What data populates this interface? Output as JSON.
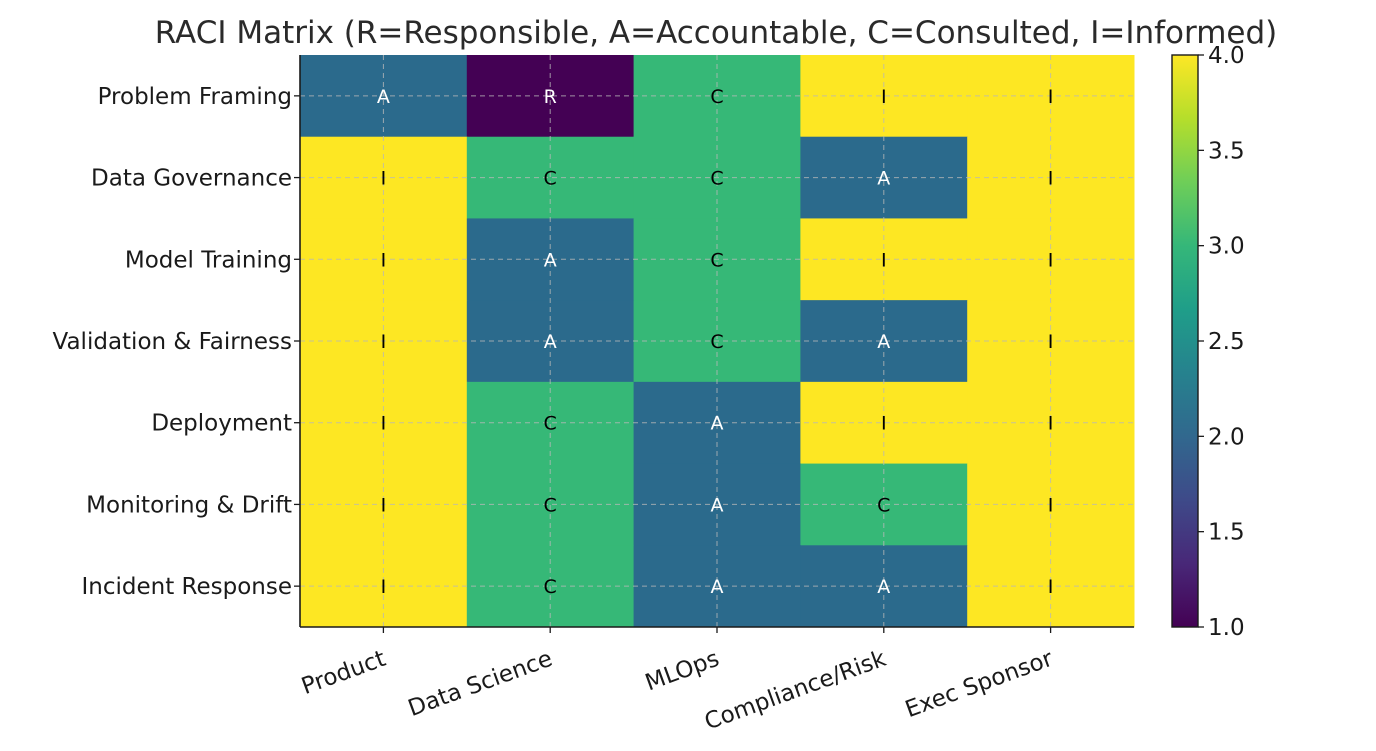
{
  "chart_data": {
    "type": "heatmap",
    "title": "RACI Matrix (R=Responsible, A=Accountable, C=Consulted, I=Informed)",
    "xlabel": "",
    "ylabel": "",
    "rows": [
      "Problem Framing",
      "Data Governance",
      "Model Training",
      "Validation & Fairness",
      "Deployment",
      "Monitoring & Drift",
      "Incident Response"
    ],
    "columns": [
      "Product",
      "Data Science",
      "MLOps",
      "Compliance/Risk",
      "Exec Sponsor"
    ],
    "values": [
      [
        2,
        1,
        3,
        4,
        4
      ],
      [
        4,
        3,
        3,
        2,
        4
      ],
      [
        4,
        2,
        3,
        4,
        4
      ],
      [
        4,
        2,
        3,
        2,
        4
      ],
      [
        4,
        3,
        2,
        4,
        4
      ],
      [
        4,
        3,
        2,
        3,
        4
      ],
      [
        4,
        3,
        2,
        2,
        4
      ]
    ],
    "labels": [
      [
        "A",
        "R",
        "C",
        "I",
        "I"
      ],
      [
        "I",
        "C",
        "C",
        "A",
        "I"
      ],
      [
        "I",
        "A",
        "C",
        "I",
        "I"
      ],
      [
        "I",
        "A",
        "C",
        "A",
        "I"
      ],
      [
        "I",
        "C",
        "A",
        "I",
        "I"
      ],
      [
        "I",
        "C",
        "A",
        "C",
        "I"
      ],
      [
        "I",
        "C",
        "A",
        "A",
        "I"
      ]
    ],
    "colormap": "viridis",
    "value_range": [
      1,
      4
    ],
    "colorbar": {
      "ticks": [
        1.0,
        1.5,
        2.0,
        2.5,
        3.0,
        3.5,
        4.0
      ],
      "tick_labels": [
        "1.0",
        "1.5",
        "2.0",
        "2.5",
        "3.0",
        "3.5",
        "4.0"
      ]
    },
    "grid": true,
    "colors": {
      "1": "#440154",
      "2": "#2b6a8c",
      "3": "#36b877",
      "4": "#fde723"
    }
  }
}
